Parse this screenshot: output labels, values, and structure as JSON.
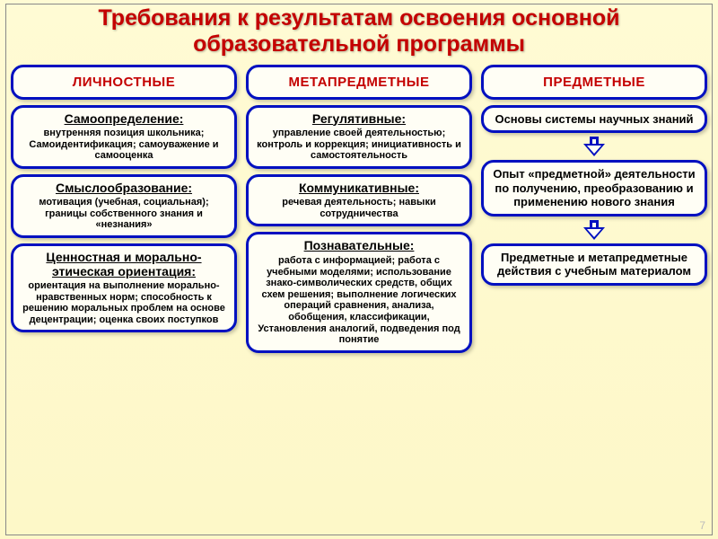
{
  "title": "Требования к результатам освоения основной образовательной программы",
  "page_number": "7",
  "colors": {
    "border": "#0010c0",
    "title": "#c40000",
    "bg_top": "#fffbd4",
    "bg_bottom": "#fdf8c8",
    "box_bg": "#fffef5"
  },
  "columns": [
    {
      "header": "ЛИЧНОСТНЫЕ",
      "items": [
        {
          "title": "Самоопределение:",
          "body": "внутренняя позиция школьника; Самоидентификация; самоуважение и самооценка"
        },
        {
          "title": "Смыслообразование:",
          "body": "мотивация (учебная, социальная); границы собственного знания и «незнания»"
        },
        {
          "title": "Ценностная и морально-этическая ориентация:",
          "body": "ориентация на выполнение морально-нравственных норм; способность к решению моральных проблем на основе децентрации; оценка своих поступков"
        }
      ]
    },
    {
      "header": "МЕТАПРЕДМЕТНЫЕ",
      "items": [
        {
          "title": "Регулятивные:",
          "body": "управление своей деятельностью; контроль и коррекция; инициативность и самостоятельность"
        },
        {
          "title": "Коммуникативные:",
          "body": "речевая деятельность; навыки сотрудничества"
        },
        {
          "title": "Познавательные:",
          "body": "работа с информацией; работа с учебными моделями; использование знако-символических средств, общих схем решения; выполнение логических операций сравнения, анализа, обобщения, классификации, Установления аналогий, подведения под понятие"
        }
      ]
    },
    {
      "header": "ПРЕДМЕТНЫЕ",
      "flow": [
        "Основы системы научных знаний",
        "Опыт «предметной» деятельности по получению, преобразованию и применению нового знания",
        "Предметные и метапредметные действия с учебным материалом"
      ]
    }
  ]
}
